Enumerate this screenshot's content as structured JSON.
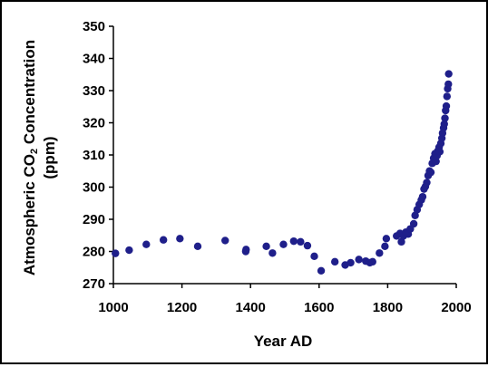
{
  "chart_data": {
    "type": "scatter",
    "title": "",
    "xlabel": "Year AD",
    "ylabel_line1_prefix": "Atmospheric CO",
    "ylabel_line1_subscript": "2",
    "ylabel_line1_suffix": " Concentration",
    "ylabel_line2": "(ppm)",
    "xlim": [
      1000,
      2000
    ],
    "ylim": [
      270,
      350
    ],
    "x_ticks": [
      1000,
      1200,
      1400,
      1600,
      1800,
      2000
    ],
    "y_ticks": [
      270,
      280,
      290,
      300,
      310,
      320,
      330,
      340,
      350
    ],
    "grid": false,
    "legend": "none",
    "marker_color": "#1f1f8a",
    "series": [
      {
        "points": [
          [
            1006,
            279.4
          ],
          [
            1046,
            280.4
          ],
          [
            1096,
            282.2
          ],
          [
            1146,
            283.6
          ],
          [
            1194,
            284.0
          ],
          [
            1246,
            281.6
          ],
          [
            1326,
            283.4
          ],
          [
            1386,
            280.0
          ],
          [
            1387,
            280.6
          ],
          [
            1446,
            281.6
          ],
          [
            1464,
            279.5
          ],
          [
            1496,
            282.2
          ],
          [
            1526,
            283.2
          ],
          [
            1546,
            283.0
          ],
          [
            1566,
            281.8
          ],
          [
            1586,
            278.5
          ],
          [
            1606,
            274.0
          ],
          [
            1646,
            276.8
          ],
          [
            1676,
            275.8
          ],
          [
            1692,
            276.5
          ],
          [
            1716,
            277.5
          ],
          [
            1736,
            277.0
          ],
          [
            1748,
            276.5
          ],
          [
            1756,
            276.8
          ],
          [
            1776,
            279.5
          ],
          [
            1792,
            281.6
          ],
          [
            1796,
            284.0
          ],
          [
            1826,
            284.8
          ],
          [
            1836,
            285.6
          ],
          [
            1840,
            283.0
          ],
          [
            1846,
            284.8
          ],
          [
            1853,
            286.0
          ],
          [
            1860,
            285.4
          ],
          [
            1866,
            287.0
          ],
          [
            1876,
            288.6
          ],
          [
            1880,
            291.2
          ],
          [
            1886,
            293.0
          ],
          [
            1892,
            294.6
          ],
          [
            1898,
            296.0
          ],
          [
            1902,
            297.0
          ],
          [
            1906,
            299.4
          ],
          [
            1910,
            300.2
          ],
          [
            1914,
            301.4
          ],
          [
            1918,
            303.6
          ],
          [
            1922,
            305.0
          ],
          [
            1926,
            304.6
          ],
          [
            1930,
            307.4
          ],
          [
            1934,
            309.0
          ],
          [
            1938,
            310.4
          ],
          [
            1941,
            308.0
          ],
          [
            1944,
            309.8
          ],
          [
            1946,
            311.2
          ],
          [
            1950,
            312.4
          ],
          [
            1952,
            311.0
          ],
          [
            1955,
            313.6
          ],
          [
            1958,
            315.2
          ],
          [
            1960,
            316.8
          ],
          [
            1963,
            318.4
          ],
          [
            1965,
            319.6
          ],
          [
            1967,
            321.4
          ],
          [
            1969,
            323.8
          ],
          [
            1971,
            325.2
          ],
          [
            1973,
            328.2
          ],
          [
            1975,
            330.6
          ],
          [
            1977,
            332.0
          ],
          [
            1978,
            335.2
          ]
        ]
      }
    ]
  }
}
